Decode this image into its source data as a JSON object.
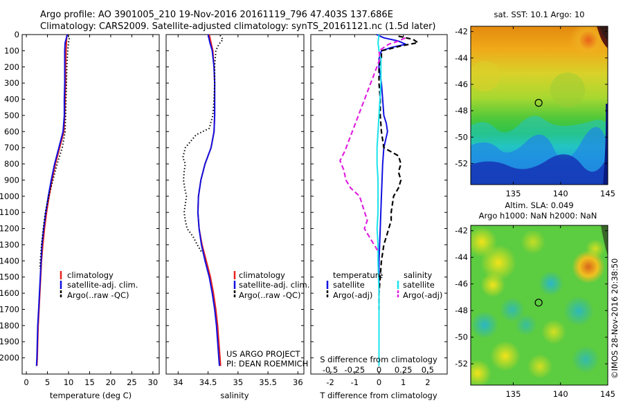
{
  "header": {
    "line1": "Argo profile: AO 3901005_210 19-Nov-2016 20161119_796 47.403S 137.686E",
    "line2": "Climatology: CARS2009. Satellite-adjusted climatology: synTS_20161121.nc (1.5d later)"
  },
  "notes": {
    "project": "US ARGO PROJECT",
    "pi": "PI: DEAN ROEMMICH",
    "credit": "©IMOS 28-Nov-2016 20:38:50"
  },
  "colors": {
    "climatology": "#e8211d",
    "satellite": "#1010e0",
    "argo": "#000000",
    "salinity_satellite": "#19e3ec",
    "salinity_argo": "#e020e0"
  },
  "chart_data": [
    {
      "type": "line",
      "panel": "temperature",
      "xlabel": "temperature (deg C)",
      "ylabel": "",
      "xlim": [
        -1,
        31.5
      ],
      "ylim": [
        2100,
        0
      ],
      "xticks": [
        0,
        5,
        10,
        15,
        20,
        25,
        30
      ],
      "yticks": [
        0,
        100,
        200,
        300,
        400,
        500,
        600,
        700,
        800,
        900,
        1000,
        1100,
        1200,
        1300,
        1400,
        1500,
        1600,
        1700,
        1800,
        1900,
        2000
      ],
      "legend": [
        "climatology",
        "satellite-adj. clim.",
        "Argo(..raw -QC)"
      ],
      "series": [
        {
          "name": "climatology",
          "y": [
            0,
            50,
            100,
            200,
            300,
            400,
            500,
            600,
            700,
            800,
            900,
            1000,
            1100,
            1200,
            1300,
            1400,
            1500,
            1600,
            1700,
            1800,
            1900,
            2000,
            2050
          ],
          "values": [
            9.6,
            9.5,
            9.4,
            9.3,
            9.3,
            9.2,
            9.1,
            8.9,
            7.9,
            6.9,
            6.1,
            5.4,
            4.8,
            4.3,
            3.9,
            3.6,
            3.4,
            3.2,
            3.0,
            2.8,
            2.7,
            2.6,
            2.5
          ]
        },
        {
          "name": "satellite-adj. clim.",
          "y": [
            0,
            30,
            50,
            100,
            200,
            300,
            400,
            500,
            600,
            700,
            800,
            900,
            1000,
            1100,
            1200,
            1300,
            1400,
            1500,
            1600,
            1700,
            1800,
            1900,
            2000,
            2050
          ],
          "values": [
            9.7,
            9.4,
            9.2,
            9.1,
            9.1,
            9.1,
            9.0,
            9.0,
            8.7,
            7.7,
            6.7,
            5.9,
            5.2,
            4.6,
            4.1,
            3.7,
            3.5,
            3.3,
            3.1,
            2.9,
            2.7,
            2.6,
            2.5,
            2.4
          ]
        },
        {
          "name": "Argo(..raw -QC)",
          "y": [
            5,
            20,
            50,
            100,
            200,
            300,
            400,
            500,
            600,
            700,
            800,
            900,
            1000,
            1100,
            1200,
            1300,
            1400,
            1450
          ],
          "values": [
            9.9,
            10.2,
            10.0,
            9.8,
            9.6,
            9.5,
            9.4,
            9.3,
            9.2,
            8.5,
            7.3,
            6.3,
            5.3,
            4.5,
            4.0,
            3.6,
            3.3,
            3.2
          ]
        }
      ]
    },
    {
      "type": "line",
      "panel": "salinity",
      "xlabel": "salinity",
      "ylabel": "",
      "xlim": [
        33.8,
        36.1
      ],
      "ylim": [
        2100,
        0
      ],
      "xticks": [
        34,
        34.5,
        35,
        35.5,
        36
      ],
      "legend": [
        "climatology",
        "satellite-adj. clim.",
        "Argo(..raw -QC)"
      ],
      "series": [
        {
          "name": "climatology",
          "y": [
            0,
            50,
            100,
            200,
            300,
            400,
            500,
            600,
            700,
            800,
            900,
            1000,
            1100,
            1200,
            1300,
            1400,
            1500,
            1600,
            1700,
            1800,
            1900,
            2000,
            2050
          ],
          "values": [
            34.52,
            34.55,
            34.58,
            34.6,
            34.61,
            34.61,
            34.61,
            34.6,
            34.55,
            34.45,
            34.38,
            34.34,
            34.33,
            34.35,
            34.4,
            34.47,
            34.54,
            34.59,
            34.63,
            34.66,
            34.68,
            34.7,
            34.71
          ]
        },
        {
          "name": "satellite-adj. clim.",
          "y": [
            0,
            50,
            100,
            200,
            300,
            400,
            500,
            600,
            700,
            800,
            900,
            1000,
            1100,
            1200,
            1300,
            1400,
            1500,
            1600,
            1700,
            1800,
            1900,
            2000,
            2050
          ],
          "values": [
            34.5,
            34.53,
            34.57,
            34.6,
            34.61,
            34.61,
            34.61,
            34.6,
            34.55,
            34.45,
            34.38,
            34.34,
            34.33,
            34.35,
            34.39,
            34.45,
            34.52,
            34.57,
            34.61,
            34.64,
            34.66,
            34.68,
            34.69
          ]
        },
        {
          "name": "Argo(..raw -QC)",
          "y": [
            5,
            30,
            60,
            100,
            200,
            300,
            400,
            500,
            580,
            620,
            700,
            760,
            800,
            850,
            900,
            950,
            1000,
            1050,
            1100,
            1150,
            1200,
            1250,
            1300,
            1350
          ],
          "values": [
            34.7,
            34.75,
            34.68,
            34.63,
            34.61,
            34.61,
            34.6,
            34.58,
            34.52,
            34.3,
            34.12,
            34.08,
            34.12,
            34.1,
            34.09,
            34.11,
            34.14,
            34.12,
            34.1,
            34.12,
            34.15,
            34.25,
            34.32,
            34.4
          ]
        }
      ]
    },
    {
      "type": "line",
      "panel": "difference",
      "xlabel": "T difference from climatology",
      "top_xlabel": "S difference from climatology",
      "xlim": [
        -2.8,
        2.8
      ],
      "ylim": [
        2100,
        0
      ],
      "xticks": [
        -2,
        -1,
        0,
        1,
        2
      ],
      "top_xticks": [
        "-0.5",
        "-0.25",
        "0",
        "0.25",
        "0.5"
      ],
      "legend_headers": [
        "temperature",
        "salinity"
      ],
      "legend": [
        "satellite",
        "Argo(-adj)",
        "satellite",
        "Argo(-adj)"
      ],
      "series": [
        {
          "name": "satellite",
          "quantity": "temperature",
          "y": [
            0,
            20,
            40,
            60,
            80,
            100,
            150,
            200,
            300,
            400,
            500,
            550,
            600,
            700,
            800,
            1000,
            1200,
            1400,
            1600,
            1800,
            2000,
            2050
          ],
          "values": [
            -0.1,
            0.2,
            0.8,
            1.1,
            0.5,
            0.1,
            0.0,
            0.0,
            0.1,
            0.15,
            0.2,
            0.3,
            0.35,
            0.2,
            0.15,
            0.1,
            0.05,
            0.0,
            0.0,
            0.0,
            0.0,
            0.0
          ]
        },
        {
          "name": "Argo(-adj)",
          "quantity": "temperature",
          "y": [
            10,
            30,
            50,
            70,
            90,
            100,
            150,
            200,
            300,
            400,
            500,
            600,
            700,
            750,
            800,
            850,
            900,
            950,
            1000,
            1100,
            1150,
            1200,
            1250,
            1300,
            1350,
            1400,
            1500,
            1600,
            1700
          ],
          "values": [
            0.8,
            1.4,
            1.6,
            0.9,
            0.4,
            0.1,
            0.1,
            0.0,
            0.0,
            0.05,
            0.05,
            0.1,
            0.2,
            0.8,
            0.9,
            0.8,
            0.9,
            0.8,
            0.6,
            0.5,
            0.5,
            0.4,
            0.3,
            0.2,
            0.15,
            0.1,
            0.05,
            0.0,
            0.0
          ]
        },
        {
          "name": "satellite",
          "quantity": "salinity",
          "y": [
            0,
            50,
            100,
            150,
            200,
            300,
            400,
            500,
            600,
            700,
            800,
            900,
            1000,
            1100,
            1200,
            1300,
            1400,
            1600,
            1800,
            2000,
            2050
          ],
          "values": [
            0.0,
            -0.01,
            0.0,
            0.02,
            0.02,
            0.02,
            0.01,
            0.0,
            -0.01,
            -0.02,
            -0.02,
            -0.01,
            -0.01,
            -0.01,
            -0.02,
            -0.01,
            -0.01,
            0.0,
            0.0,
            0.0,
            0.0
          ]
        },
        {
          "name": "Argo(-adj)",
          "quantity": "salinity",
          "y": [
            20,
            40,
            60,
            100,
            150,
            720,
            780,
            840,
            900,
            950,
            1000,
            1150,
            1200,
            1250,
            1300,
            1350
          ],
          "values": [
            0.27,
            0.2,
            0.1,
            0.0,
            0.01,
            -0.35,
            -0.4,
            -0.36,
            -0.34,
            -0.29,
            -0.2,
            -0.12,
            -0.15,
            -0.1,
            -0.05,
            0.0
          ]
        }
      ]
    },
    {
      "type": "heatmap",
      "panel": "sst-map",
      "title": "sat. SST: 10.1 Argo: 10",
      "xticks": [
        135,
        140,
        145
      ],
      "yticks": [
        -42,
        -44,
        -46,
        -48,
        -50,
        -52
      ],
      "xlim": [
        130.5,
        145
      ],
      "ylim": [
        -53.6,
        -41.6
      ],
      "marker": {
        "lon": 137.686,
        "lat": -47.403
      }
    },
    {
      "type": "heatmap",
      "panel": "sla-map",
      "title_line1": "Altim. SLA: 0.049",
      "title_line2": "Argo h1000: NaN h2000: NaN",
      "xticks": [
        135,
        140,
        145
      ],
      "yticks": [
        -42,
        -44,
        -46,
        -48,
        -50,
        -52
      ],
      "xlim": [
        130.5,
        145
      ],
      "ylim": [
        -53.6,
        -41.6
      ],
      "marker": {
        "lon": 137.686,
        "lat": -47.403
      }
    }
  ]
}
